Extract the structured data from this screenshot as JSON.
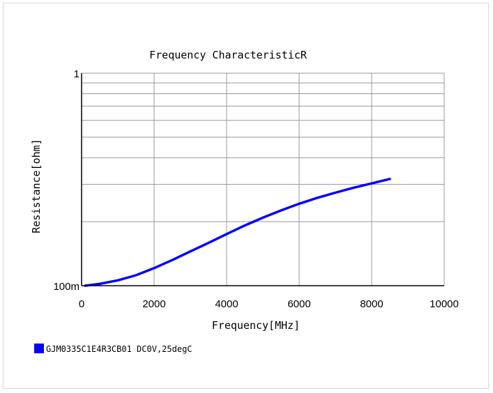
{
  "chart_data": {
    "type": "line",
    "title": "Frequency CharacteristicR",
    "xlabel": "Frequency[MHz]",
    "ylabel": "Resistance[ohm]",
    "xlim": [
      0,
      10000
    ],
    "ylim": [
      0.1,
      1
    ],
    "yscale": "log",
    "grid": true,
    "legend_position": "bottom-left",
    "x_ticks": [
      {
        "value": 0,
        "label": "0"
      },
      {
        "value": 2000,
        "label": "2000"
      },
      {
        "value": 4000,
        "label": "4000"
      },
      {
        "value": 6000,
        "label": "6000"
      },
      {
        "value": 8000,
        "label": "8000"
      },
      {
        "value": 10000,
        "label": "10000"
      }
    ],
    "y_ticks": [
      {
        "value": 0.1,
        "label": "100m"
      },
      {
        "value": 1,
        "label": "1"
      }
    ],
    "series": [
      {
        "name": "GJM0335C1E4R3CB01 DC0V,25degC",
        "color": "#0000ff",
        "x": [
          100,
          500,
          1000,
          1500,
          2000,
          2500,
          3000,
          3500,
          4000,
          4500,
          5000,
          5500,
          6000,
          6500,
          7000,
          7500,
          8000,
          8500
        ],
        "y": [
          0.1,
          0.102,
          0.106,
          0.112,
          0.121,
          0.132,
          0.145,
          0.159,
          0.175,
          0.192,
          0.209,
          0.226,
          0.243,
          0.259,
          0.274,
          0.289,
          0.303,
          0.318
        ]
      }
    ]
  }
}
